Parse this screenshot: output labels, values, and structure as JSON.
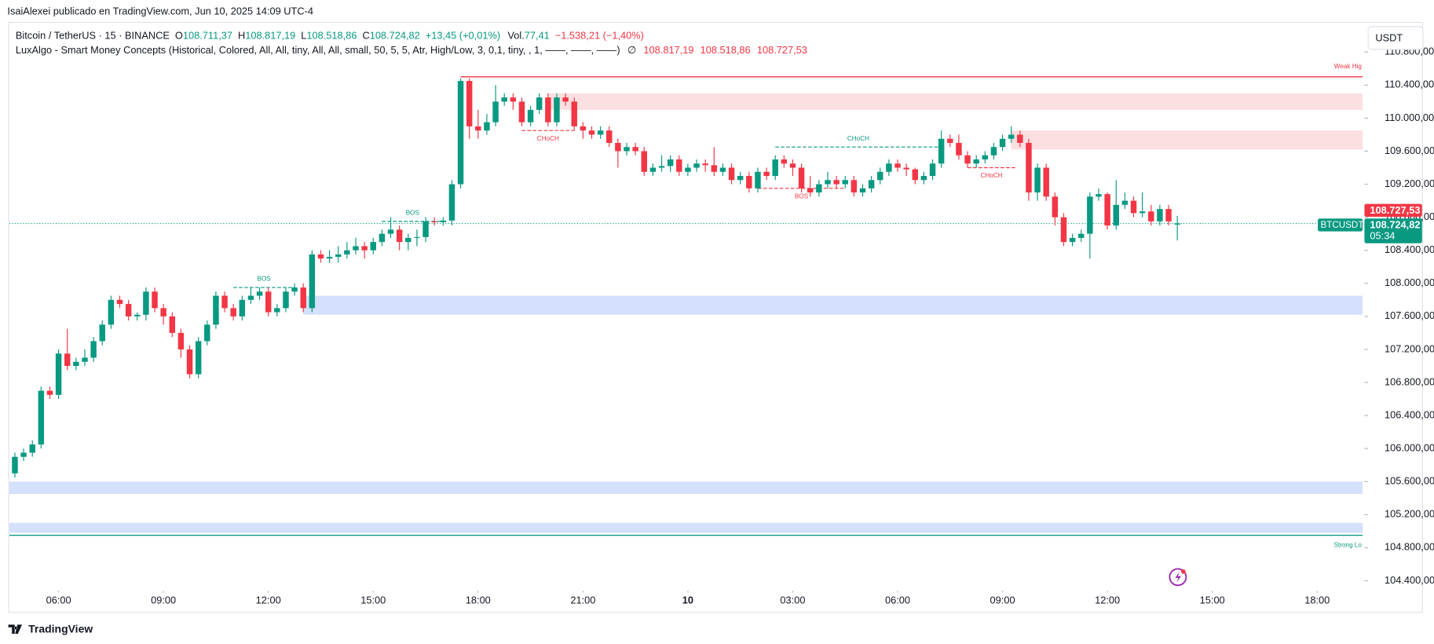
{
  "header": {
    "author_line": "IsaiAlexei publicado en TradingView.com, Jun 10, 2025 14:09 UTC-4"
  },
  "toolbar": {
    "currency_button": "USDT"
  },
  "footer": {
    "brand": "TradingView"
  },
  "chart_data": {
    "type": "candlestick",
    "symbol": "Bitcoin / TetherUS · 15 · BINANCE",
    "ohlc_keys": [
      "O",
      "H",
      "L",
      "C"
    ],
    "ohlc_texts": [
      "108.711,37",
      "108.817,19",
      "108.518,86",
      "108.724,82"
    ],
    "change_text": "+13,45 (+0,01%)",
    "volume_key": "Vol.",
    "volume_text": "77,41",
    "volume_change_text": "−1.538,21 (−1,40%)",
    "indicator": "LuxAlgo - Smart Money Concepts (Historical, Colored, All, All, tiny, All, All, small, 50, 5, 5, Atr, High/Low, 3, 0,1, tiny, , 1, ——, ——, ——)",
    "indicator_symbol": "∅",
    "indicator_values": [
      "108.817,19",
      "108.518,86",
      "108.727,53"
    ],
    "up_color": "#089981",
    "down_color": "#f23645",
    "grid": false,
    "xlim": [
      0.35,
      155.2
    ],
    "ylim": [
      104035,
      111153
    ],
    "xticks": [
      {
        "value": 6,
        "label": "06:00"
      },
      {
        "value": 18,
        "label": "09:00"
      },
      {
        "value": 30,
        "label": "12:00"
      },
      {
        "value": 42,
        "label": "15:00"
      },
      {
        "value": 54,
        "label": "18:00"
      },
      {
        "value": 66,
        "label": "21:00"
      },
      {
        "value": 78,
        "label": "10"
      },
      {
        "value": 90,
        "label": "03:00"
      },
      {
        "value": 102,
        "label": "06:00"
      },
      {
        "value": 114,
        "label": "09:00"
      },
      {
        "value": 126,
        "label": "12:00"
      },
      {
        "value": 138,
        "label": "15:00"
      },
      {
        "value": 150,
        "label": "18:00"
      }
    ],
    "yticks": [
      {
        "value": 110800,
        "label": "110.800,00"
      },
      {
        "value": 110400,
        "label": "110.400,00"
      },
      {
        "value": 110000,
        "label": "110.000,00"
      },
      {
        "value": 109600,
        "label": "109.600,00"
      },
      {
        "value": 109200,
        "label": "109.200,00"
      },
      {
        "value": 108800,
        "label": "108.800,00"
      },
      {
        "value": 108400,
        "label": "108.400,00"
      },
      {
        "value": 108000,
        "label": "108.000,00"
      },
      {
        "value": 107600,
        "label": "107.600,00"
      },
      {
        "value": 107200,
        "label": "107.200,00"
      },
      {
        "value": 106800,
        "label": "106.800,00"
      },
      {
        "value": 106400,
        "label": "106.400,00"
      },
      {
        "value": 106000,
        "label": "106.000,00"
      },
      {
        "value": 105600,
        "label": "105.600,00"
      },
      {
        "value": 105200,
        "label": "105.200,00"
      },
      {
        "value": 104800,
        "label": "104.800,00"
      },
      {
        "value": 104400,
        "label": "104.400,00"
      }
    ],
    "ohlc": [
      [
        105500,
        105750,
        105450,
        105700
      ],
      [
        105700,
        105950,
        105650,
        105900
      ],
      [
        105900,
        106000,
        105850,
        105950
      ],
      [
        105950,
        106100,
        105900,
        106050
      ],
      [
        106050,
        106750,
        106000,
        106700
      ],
      [
        106700,
        106750,
        106600,
        106650
      ],
      [
        106650,
        107200,
        106600,
        107150
      ],
      [
        107150,
        107450,
        106950,
        107000
      ],
      [
        107000,
        107100,
        106950,
        107050
      ],
      [
        107050,
        107200,
        107000,
        107100
      ],
      [
        107100,
        107350,
        107050,
        107300
      ],
      [
        107300,
        107550,
        107250,
        107500
      ],
      [
        107500,
        107850,
        107450,
        107800
      ],
      [
        107800,
        107850,
        107700,
        107750
      ],
      [
        107750,
        107800,
        107550,
        107600
      ],
      [
        107600,
        107650,
        107550,
        107620
      ],
      [
        107620,
        107950,
        107550,
        107900
      ],
      [
        107900,
        107950,
        107650,
        107700
      ],
      [
        107700,
        107750,
        107500,
        107600
      ],
      [
        107600,
        107650,
        107350,
        107400
      ],
      [
        107400,
        107450,
        107100,
        107200
      ],
      [
        107200,
        107250,
        106850,
        106900
      ],
      [
        106900,
        107350,
        106850,
        107300
      ],
      [
        107300,
        107550,
        107250,
        107500
      ],
      [
        107500,
        107900,
        107450,
        107850
      ],
      [
        107850,
        107900,
        107650,
        107700
      ],
      [
        107700,
        107750,
        107550,
        107600
      ],
      [
        107600,
        107850,
        107550,
        107800
      ],
      [
        107800,
        107950,
        107750,
        107850
      ],
      [
        107850,
        107950,
        107800,
        107900
      ],
      [
        107900,
        107950,
        107600,
        107650
      ],
      [
        107650,
        107750,
        107600,
        107700
      ],
      [
        107700,
        107950,
        107650,
        107900
      ],
      [
        107900,
        108000,
        107850,
        107950
      ],
      [
        107950,
        108000,
        107650,
        107700
      ],
      [
        107700,
        108400,
        107650,
        108350
      ],
      [
        108350,
        108400,
        108250,
        108300
      ],
      [
        108300,
        108400,
        108250,
        108320
      ],
      [
        108320,
        108450,
        108250,
        108350
      ],
      [
        108350,
        108500,
        108300,
        108400
      ],
      [
        108400,
        108550,
        108350,
        108450
      ],
      [
        108450,
        108500,
        108300,
        108400
      ],
      [
        108400,
        108550,
        108350,
        108500
      ],
      [
        108500,
        108650,
        108450,
        108600
      ],
      [
        108600,
        108800,
        108550,
        108650
      ],
      [
        108650,
        108700,
        108400,
        108500
      ],
      [
        108500,
        108600,
        108400,
        108550
      ],
      [
        108550,
        108650,
        108450,
        108560
      ],
      [
        108560,
        108800,
        108500,
        108750
      ],
      [
        108750,
        108800,
        108700,
        108740
      ],
      [
        108740,
        108800,
        108700,
        108760
      ],
      [
        108760,
        109250,
        108700,
        109200
      ],
      [
        109200,
        110480,
        109150,
        110450
      ],
      [
        110450,
        110480,
        109750,
        109900
      ],
      [
        109900,
        110100,
        109750,
        109850
      ],
      [
        109850,
        110050,
        109800,
        109950
      ],
      [
        109950,
        110400,
        109900,
        110200
      ],
      [
        110200,
        110300,
        110150,
        110250
      ],
      [
        110250,
        110300,
        110100,
        110200
      ],
      [
        110200,
        110250,
        109900,
        109950
      ],
      [
        109950,
        110150,
        109900,
        110100
      ],
      [
        110100,
        110300,
        110050,
        110250
      ],
      [
        110250,
        110300,
        109900,
        109950
      ],
      [
        109950,
        110300,
        109900,
        110250
      ],
      [
        110250,
        110300,
        110150,
        110200
      ],
      [
        110200,
        110250,
        109850,
        109900
      ],
      [
        109900,
        109950,
        109750,
        109850
      ],
      [
        109850,
        109900,
        109750,
        109800
      ],
      [
        109800,
        109900,
        109750,
        109850
      ],
      [
        109850,
        109900,
        109650,
        109700
      ],
      [
        109700,
        109750,
        109400,
        109600
      ],
      [
        109600,
        109700,
        109550,
        109650
      ],
      [
        109650,
        109700,
        109550,
        109600
      ],
      [
        109600,
        109650,
        109300,
        109350
      ],
      [
        109350,
        109450,
        109300,
        109400
      ],
      [
        109400,
        109550,
        109350,
        109420
      ],
      [
        109420,
        109550,
        109350,
        109500
      ],
      [
        109500,
        109550,
        109300,
        109350
      ],
      [
        109350,
        109450,
        109300,
        109400
      ],
      [
        109400,
        109500,
        109350,
        109450
      ],
      [
        109450,
        109500,
        109350,
        109430
      ],
      [
        109430,
        109650,
        109300,
        109350
      ],
      [
        109350,
        109450,
        109300,
        109400
      ],
      [
        109400,
        109450,
        109200,
        109250
      ],
      [
        109250,
        109350,
        109200,
        109300
      ],
      [
        109300,
        109350,
        109100,
        109150
      ],
      [
        109150,
        109400,
        109100,
        109350
      ],
      [
        109350,
        109400,
        109250,
        109300
      ],
      [
        109300,
        109550,
        109250,
        109500
      ],
      [
        109500,
        109550,
        109400,
        109450
      ],
      [
        109450,
        109500,
        109300,
        109400
      ],
      [
        109400,
        109450,
        109100,
        109150
      ],
      [
        109150,
        109300,
        109050,
        109100
      ],
      [
        109100,
        109250,
        109050,
        109200
      ],
      [
        109200,
        109350,
        109150,
        109250
      ],
      [
        109250,
        109300,
        109150,
        109200
      ],
      [
        109200,
        109300,
        109150,
        109250
      ],
      [
        109250,
        109300,
        109050,
        109100
      ],
      [
        109100,
        109200,
        109050,
        109150
      ],
      [
        109150,
        109300,
        109100,
        109250
      ],
      [
        109250,
        109400,
        109200,
        109350
      ],
      [
        109350,
        109500,
        109300,
        109450
      ],
      [
        109450,
        109500,
        109350,
        109400
      ],
      [
        109400,
        109450,
        109300,
        109380
      ],
      [
        109380,
        109400,
        109200,
        109250
      ],
      [
        109250,
        109350,
        109200,
        109300
      ],
      [
        109300,
        109500,
        109250,
        109450
      ],
      [
        109450,
        109850,
        109400,
        109750
      ],
      [
        109750,
        109800,
        109650,
        109700
      ],
      [
        109700,
        109800,
        109500,
        109550
      ],
      [
        109550,
        109600,
        109400,
        109450
      ],
      [
        109450,
        109550,
        109400,
        109500
      ],
      [
        109500,
        109600,
        109450,
        109550
      ],
      [
        109550,
        109700,
        109500,
        109650
      ],
      [
        109650,
        109800,
        109600,
        109750
      ],
      [
        109750,
        109900,
        109700,
        109800
      ],
      [
        109800,
        109850,
        109650,
        109700
      ],
      [
        109700,
        109750,
        109000,
        109100
      ],
      [
        109100,
        109450,
        109000,
        109400
      ],
      [
        109400,
        109450,
        109000,
        109050
      ],
      [
        109050,
        109100,
        108700,
        108800
      ],
      [
        108800,
        108850,
        108450,
        108500
      ],
      [
        108500,
        108600,
        108450,
        108550
      ],
      [
        108550,
        108650,
        108500,
        108600
      ],
      [
        108600,
        109100,
        108300,
        109050
      ],
      [
        109050,
        109150,
        109000,
        109080
      ],
      [
        109080,
        109100,
        108650,
        108700
      ],
      [
        108700,
        109250,
        108650,
        108950
      ],
      [
        108950,
        109100,
        108900,
        109000
      ],
      [
        109000,
        109050,
        108800,
        108850
      ],
      [
        108850,
        109100,
        108800,
        108870
      ],
      [
        108870,
        108950,
        108700,
        108750
      ],
      [
        108750,
        108950,
        108700,
        108900
      ],
      [
        108900,
        108950,
        108700,
        108750
      ],
      [
        108711.37,
        108817.19,
        108518.86,
        108724.82
      ]
    ],
    "zones": [
      {
        "top": 110300,
        "bottom": 110100,
        "start": 62,
        "color": "#fcdfe1"
      },
      {
        "top": 109850,
        "bottom": 109620,
        "start": 115,
        "color": "#fcdfe1"
      },
      {
        "top": 107850,
        "bottom": 107620,
        "start": 34,
        "color": "#d4e0fc"
      },
      {
        "top": 105600,
        "bottom": 105450,
        "start": 0.35,
        "color": "#d4e0fc"
      },
      {
        "top": 105100,
        "bottom": 104980,
        "start": 0.35,
        "color": "#d4e0fc"
      }
    ],
    "levels": [
      {
        "label": "Weak Hig",
        "value": 110500,
        "start": 52,
        "color": "#f23645",
        "position": "above"
      },
      {
        "label": "Strong Lo",
        "value": 104950,
        "start": 0.35,
        "color": "#089981",
        "position": "below"
      }
    ],
    "structures": [
      {
        "label": "BOS",
        "value": 107950,
        "start": 26,
        "end": 33,
        "color": "#089981",
        "position": "above"
      },
      {
        "label": "BOS",
        "value": 108750,
        "start": 43,
        "end": 50,
        "color": "#089981",
        "position": "above"
      },
      {
        "label": "CHoCH",
        "value": 109850,
        "start": 59,
        "end": 65,
        "color": "#f23645",
        "position": "below"
      },
      {
        "label": "BOS",
        "value": 109150,
        "start": 86,
        "end": 96,
        "color": "#f23645",
        "position": "below"
      },
      {
        "label": "CHoCH",
        "value": 109650,
        "start": 88,
        "end": 107,
        "color": "#089981",
        "position": "above"
      },
      {
        "label": "CHoCH",
        "value": 109400,
        "start": 110,
        "end": 115.5,
        "color": "#f23645",
        "position": "below"
      }
    ],
    "price_tags": {
      "symbol": "BTCUSDT",
      "indicator_price": "108.727,53",
      "last_price": "108.724,82",
      "countdown": "05:34"
    }
  }
}
